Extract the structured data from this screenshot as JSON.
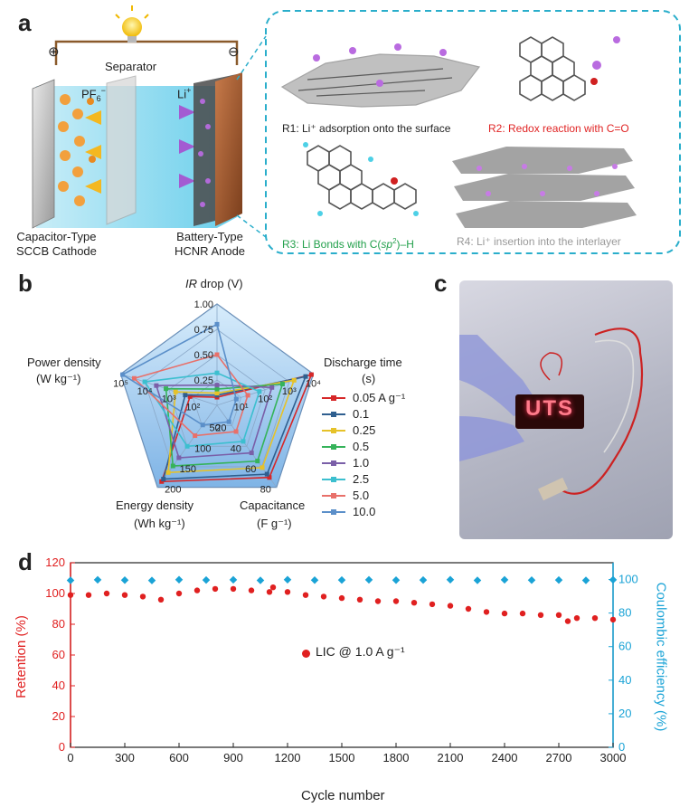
{
  "panel_letters": {
    "a": "a",
    "b": "b",
    "c": "c",
    "d": "d"
  },
  "panel_a": {
    "separator": "Separator",
    "plus": "⊕",
    "minus": "⊖",
    "anion": "PF",
    "anion_sub": "6",
    "anion_sup": "−",
    "cation": "Li",
    "cation_sup": "+",
    "cathode_line1": "Capacitor-Type",
    "cathode_line2": "SCCB Cathode",
    "anode_line1": "Battery-Type",
    "anode_line2": "HCNR Anode",
    "r1": "R1: Li⁺ adsorption onto the surface",
    "r2": "R2: Redox reaction with C=O",
    "r3_pre": "R3: Li Bonds with C(",
    "r3_sp": "sp",
    "r3_sup": "2",
    "r3_post": ")–H",
    "r4": "R4: Li⁺ insertion into the interlayer",
    "colors": {
      "r2": "#e02424",
      "r3": "#22a04b",
      "r4": "#999999",
      "dashed_box": "#2aaecb"
    }
  },
  "panel_c": {
    "display_text": "UTS"
  },
  "chart_data": [
    {
      "panel": "b",
      "type": "radar",
      "axes": [
        {
          "name_pre": "",
          "name_italic": "IR",
          "name_post": " drop (V)",
          "unit": "",
          "ticks": [
            "0.25",
            "0.50",
            "0.75",
            "1.00"
          ]
        },
        {
          "name_pre": "Discharge time",
          "name_italic": "",
          "name_post": "",
          "unit": "(s)",
          "ticks": [
            "10¹",
            "10²",
            "10³",
            "10⁴"
          ]
        },
        {
          "name_pre": "Capacitance",
          "name_italic": "",
          "name_post": "",
          "unit": "(F g⁻¹)",
          "ticks": [
            "20",
            "40",
            "60",
            "80"
          ]
        },
        {
          "name_pre": "Energy density",
          "name_italic": "",
          "name_post": "",
          "unit": "(Wh kg⁻¹)",
          "ticks": [
            "50",
            "100",
            "150",
            "200"
          ]
        },
        {
          "name_pre": "Power density",
          "name_italic": "",
          "name_post": "",
          "unit": "(W kg⁻¹)",
          "ticks": [
            "10²",
            "10³",
            "10⁴",
            "10⁵"
          ]
        }
      ],
      "series": [
        {
          "name": "0.05 A g⁻¹",
          "color": "#d62728",
          "values": [
            0.08,
            0.98,
            0.88,
            0.93,
            0.28
          ]
        },
        {
          "name": "0.1",
          "color": "#2f5f8f",
          "values": [
            0.1,
            0.92,
            0.84,
            0.9,
            0.33
          ]
        },
        {
          "name": "0.25",
          "color": "#e6c229",
          "values": [
            0.12,
            0.8,
            0.76,
            0.82,
            0.43
          ]
        },
        {
          "name": "0.5",
          "color": "#35b35a",
          "values": [
            0.16,
            0.68,
            0.68,
            0.74,
            0.53
          ]
        },
        {
          "name": "1.0",
          "color": "#7a5fa8",
          "values": [
            0.2,
            0.57,
            0.58,
            0.64,
            0.63
          ]
        },
        {
          "name": "2.5",
          "color": "#3cbfcf",
          "values": [
            0.32,
            0.44,
            0.44,
            0.5,
            0.75
          ]
        },
        {
          "name": "5.0",
          "color": "#e8706a",
          "values": [
            0.5,
            0.32,
            0.32,
            0.37,
            0.86
          ]
        },
        {
          "name": "10.0",
          "color": "#5b8fc9",
          "values": [
            0.8,
            0.2,
            0.2,
            0.24,
            0.98
          ]
        }
      ]
    },
    {
      "panel": "d",
      "type": "scatter",
      "xlabel": "Cycle number",
      "ylabel_left": "Retention (%)",
      "ylabel_right": "Coulombic efficiency (%)",
      "xlim": [
        0,
        3000
      ],
      "ylim_left": [
        0,
        120
      ],
      "ylim_right": [
        0,
        110
      ],
      "xticks": [
        0,
        300,
        600,
        900,
        1200,
        1500,
        1800,
        2100,
        2400,
        2700,
        3000
      ],
      "yticks_left": [
        0,
        20,
        40,
        60,
        80,
        100,
        120
      ],
      "yticks_right": [
        0,
        20,
        40,
        60,
        80,
        100
      ],
      "legend": "LIC  @ 1.0 A g⁻¹",
      "series": [
        {
          "name": "LIC",
          "axis": "left",
          "color": "#e02020",
          "x": [
            0,
            100,
            200,
            300,
            400,
            500,
            600,
            700,
            800,
            900,
            1000,
            1100,
            1120,
            1200,
            1300,
            1400,
            1500,
            1600,
            1700,
            1800,
            1900,
            2000,
            2100,
            2200,
            2300,
            2400,
            2500,
            2600,
            2700,
            2750,
            2800,
            2900,
            3000
          ],
          "y": [
            99,
            99,
            100,
            99,
            98,
            96,
            100,
            102,
            103,
            103,
            102,
            101,
            104,
            101,
            99,
            98,
            97,
            96,
            95,
            95,
            94,
            93,
            92,
            90,
            88,
            87,
            87,
            86,
            86,
            82,
            84,
            84,
            83
          ]
        },
        {
          "name": "Coulombic efficiency",
          "axis": "right",
          "color": "#1aa3d6",
          "x": [
            0,
            150,
            300,
            450,
            600,
            750,
            900,
            1050,
            1200,
            1350,
            1500,
            1650,
            1800,
            1950,
            2100,
            2250,
            2400,
            2550,
            2700,
            2850,
            3000
          ],
          "y": [
            99.5,
            99.8,
            99.6,
            99.4,
            99.9,
            99.7,
            99.8,
            99.5,
            99.9,
            99.6,
            99.7,
            99.8,
            99.6,
            99.7,
            99.9,
            99.5,
            99.8,
            99.6,
            99.7,
            99.5,
            99.8
          ]
        }
      ]
    }
  ]
}
